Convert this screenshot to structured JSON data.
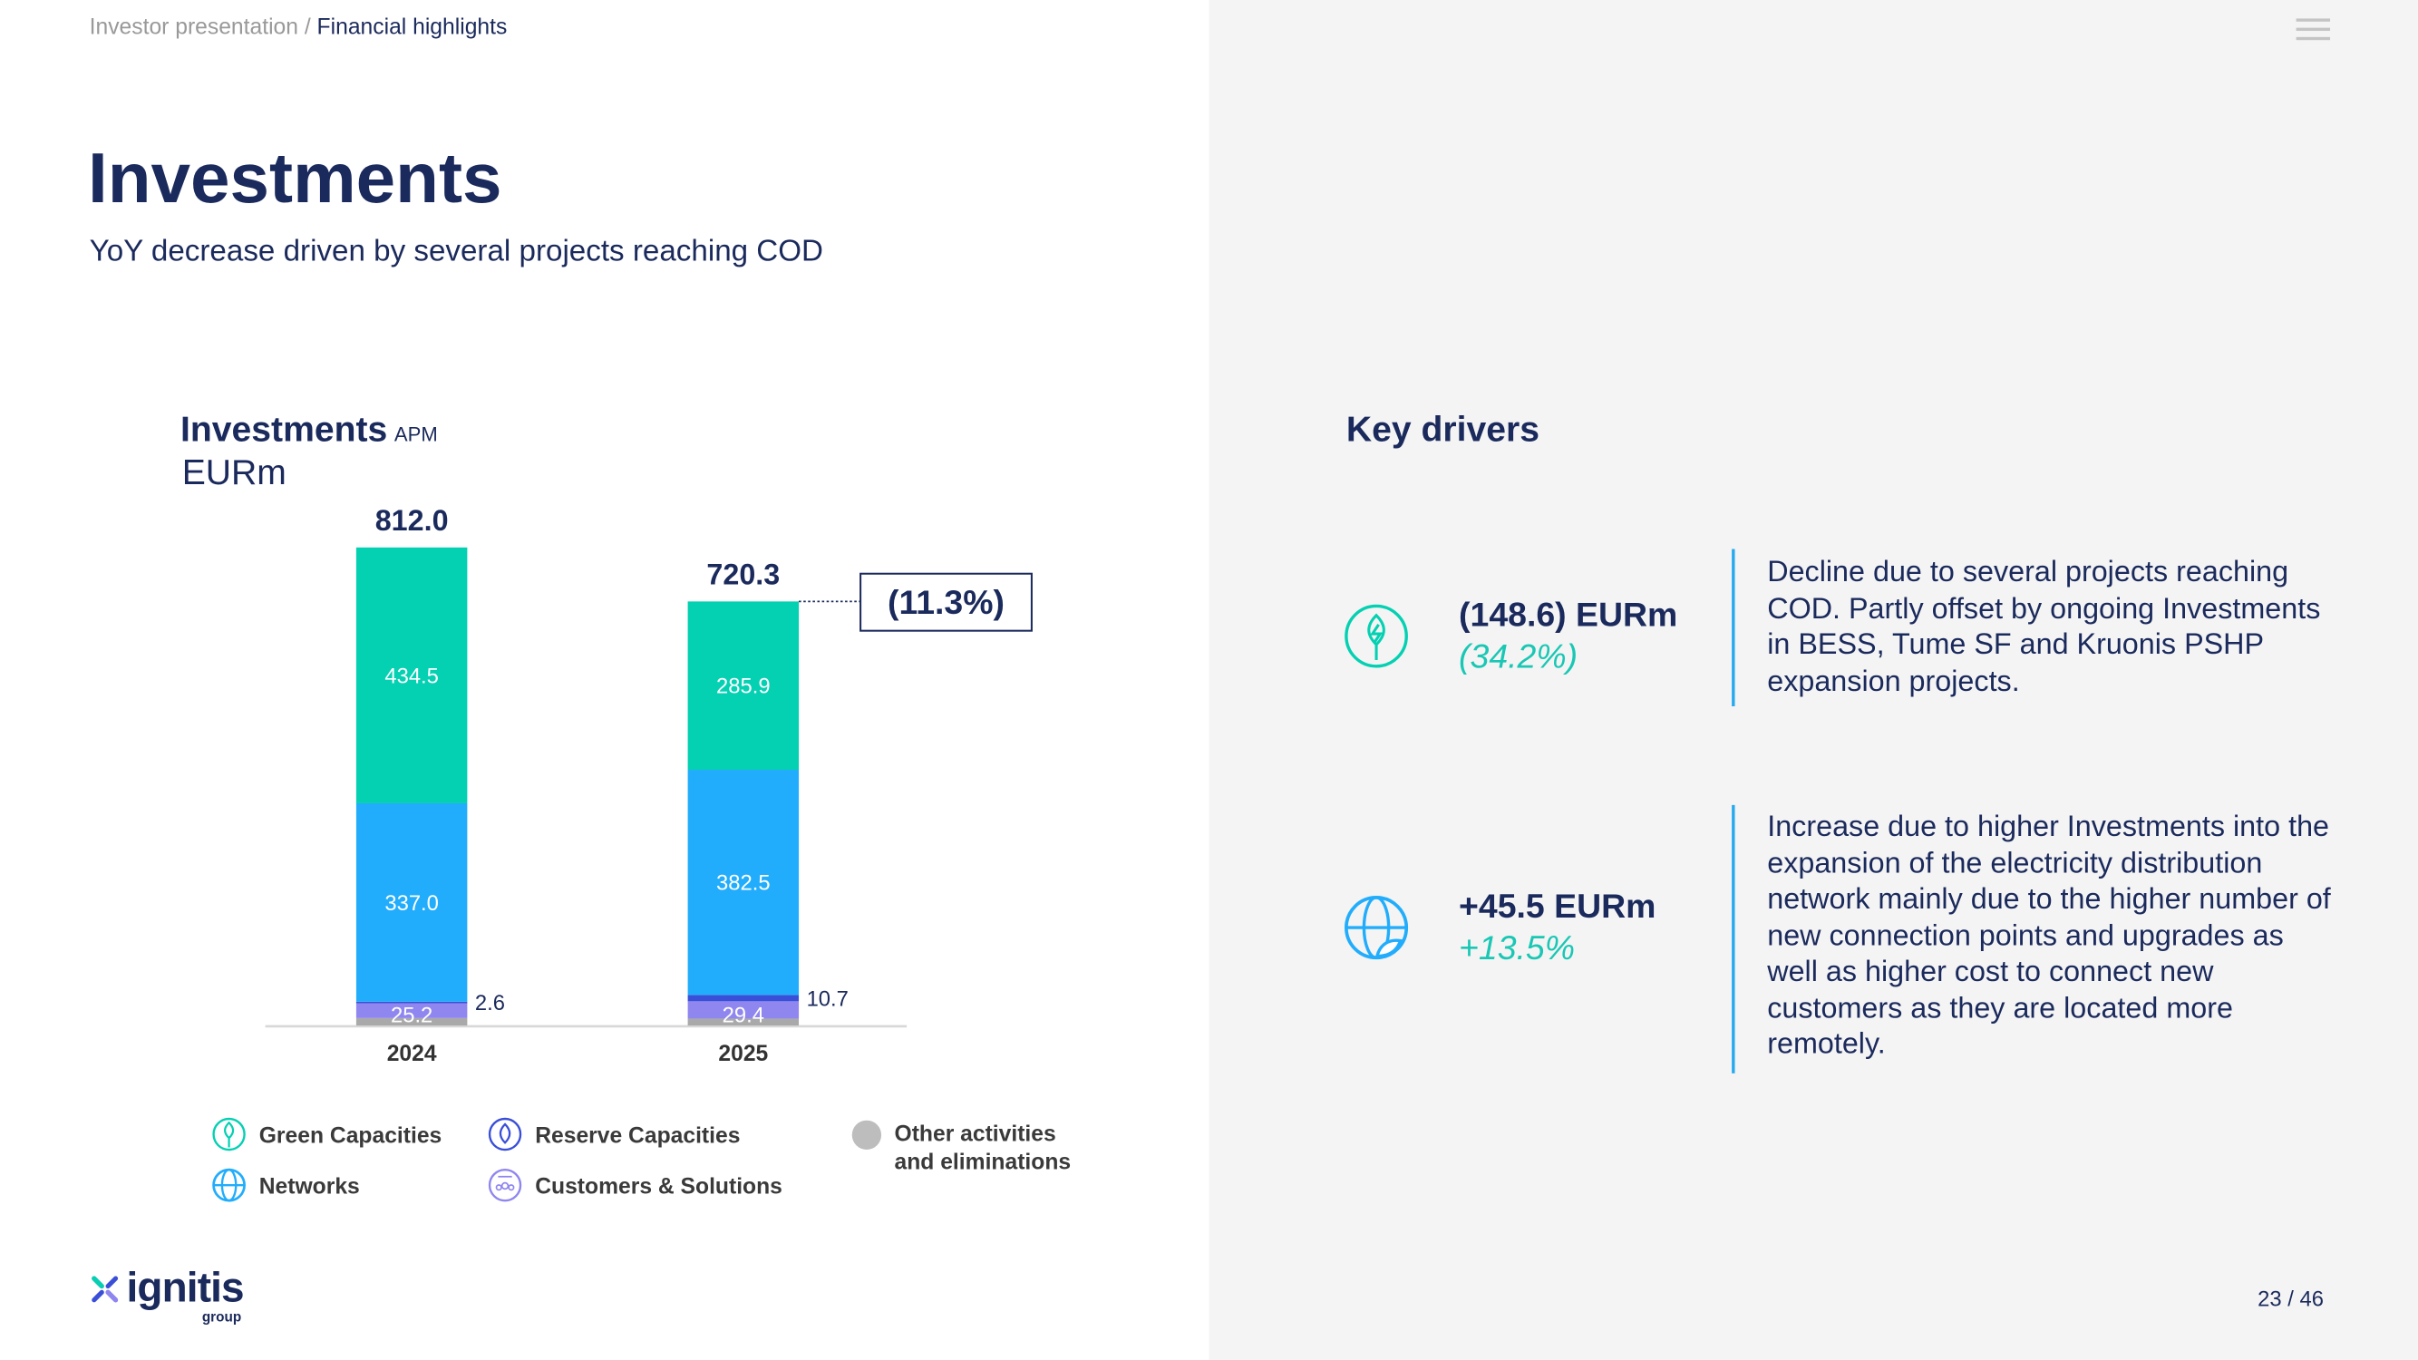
{
  "breadcrumb": {
    "parent": "Investor presentation",
    "separator": " / ",
    "current": "Financial highlights"
  },
  "title": "Investments",
  "subtitle": "YoY decrease driven by several projects reaching COD",
  "chart_title": "Investments",
  "chart_title_tag": "APM",
  "chart_unit": "EURm",
  "chart_data": {
    "type": "bar",
    "stacked": true,
    "categories": [
      "2024",
      "2025"
    ],
    "totals": [
      "812.0",
      "720.3"
    ],
    "change_label": "(11.3%)",
    "series": [
      {
        "name": "Other activities and eliminations",
        "color": "#a9a9a9",
        "values": [
          12.7,
          11.8
        ],
        "labels": [
          "",
          ""
        ]
      },
      {
        "name": "Customers & Solutions",
        "color": "#8f86f0",
        "values": [
          25.2,
          29.4
        ],
        "labels": [
          "25.2",
          "29.4"
        ]
      },
      {
        "name": "Reserve Capacities",
        "color": "#3a4fd8",
        "values": [
          2.6,
          10.7
        ],
        "labels": [
          "2.6",
          "10.7"
        ]
      },
      {
        "name": "Networks",
        "color": "#22adfc",
        "values": [
          337.0,
          382.5
        ],
        "labels": [
          "337.0",
          "382.5"
        ]
      },
      {
        "name": "Green Capacities",
        "color": "#04d0b2",
        "values": [
          434.5,
          285.9
        ],
        "labels": [
          "434.5",
          "285.9"
        ]
      }
    ],
    "ylim": [
      0,
      812
    ]
  },
  "legend": [
    {
      "label": "Green Capacities",
      "icon": "leaf-bolt-icon"
    },
    {
      "label": "Reserve Capacities",
      "icon": "flame-icon"
    },
    {
      "label": "Other activities and eliminations",
      "icon": "gray-dot-icon"
    },
    {
      "label": "Networks",
      "icon": "globe-leaf-icon"
    },
    {
      "label": "Customers & Solutions",
      "icon": "people-icon"
    }
  ],
  "key_drivers": {
    "title": "Key drivers",
    "items": [
      {
        "value": "(148.6) EURm",
        "pct": "(34.2%)",
        "text": "Decline due to several projects reaching COD. Partly offset by ongoing Investments in BESS, Tume SF and Kruonis PSHP expansion projects."
      },
      {
        "value": "+45.5 EURm",
        "pct": "+13.5%",
        "text": "Increase due to higher Investments into the expansion of the electricity distribution network mainly due to the higher number of new connection points and upgrades as well as higher cost to connect new customers as they are located more remotely."
      }
    ]
  },
  "logo": {
    "name": "ignitis",
    "sub": "group"
  },
  "page": "23 / 46",
  "menu_icon": "hamburger-icon"
}
